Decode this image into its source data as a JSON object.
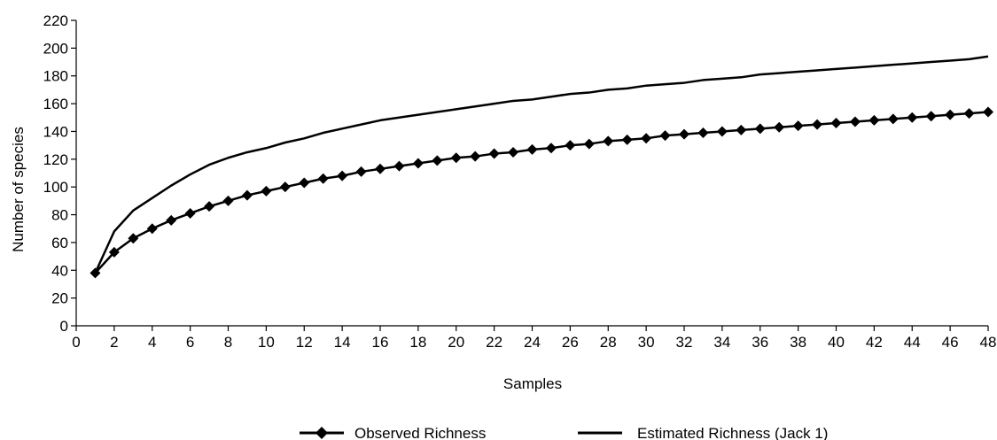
{
  "chart_data": {
    "type": "line",
    "title": "",
    "xlabel": "Samples",
    "ylabel": "Number of species",
    "xlim": [
      0,
      48
    ],
    "ylim": [
      0,
      220
    ],
    "xticks": [
      0,
      2,
      4,
      6,
      8,
      10,
      12,
      14,
      16,
      18,
      20,
      22,
      24,
      26,
      28,
      30,
      32,
      34,
      36,
      38,
      40,
      42,
      44,
      46,
      48
    ],
    "yticks": [
      0,
      20,
      40,
      60,
      80,
      100,
      120,
      140,
      160,
      180,
      200,
      220
    ],
    "grid": false,
    "legend_position": "bottom",
    "x": [
      1,
      2,
      3,
      4,
      5,
      6,
      7,
      8,
      9,
      10,
      11,
      12,
      13,
      14,
      15,
      16,
      17,
      18,
      19,
      20,
      21,
      22,
      23,
      24,
      25,
      26,
      27,
      28,
      29,
      30,
      31,
      32,
      33,
      34,
      35,
      36,
      37,
      38,
      39,
      40,
      41,
      42,
      43,
      44,
      45,
      46,
      47,
      48
    ],
    "series": [
      {
        "name": "Observed Richness",
        "marker": "diamond",
        "color": "#000000",
        "values": [
          38,
          53,
          63,
          70,
          76,
          81,
          86,
          90,
          94,
          97,
          100,
          103,
          106,
          108,
          111,
          113,
          115,
          117,
          119,
          121,
          122,
          124,
          125,
          127,
          128,
          130,
          131,
          133,
          134,
          135,
          137,
          138,
          139,
          140,
          141,
          142,
          143,
          144,
          145,
          146,
          147,
          148,
          149,
          150,
          151,
          152,
          153,
          154
        ]
      },
      {
        "name": "Estimated Richness (Jack 1)",
        "marker": "none",
        "color": "#000000",
        "values": [
          38,
          68,
          83,
          92,
          101,
          109,
          116,
          121,
          125,
          128,
          132,
          135,
          139,
          142,
          145,
          148,
          150,
          152,
          154,
          156,
          158,
          160,
          162,
          163,
          165,
          167,
          168,
          170,
          171,
          173,
          174,
          175,
          177,
          178,
          179,
          181,
          182,
          183,
          184,
          185,
          186,
          187,
          188,
          189,
          190,
          191,
          192,
          194
        ]
      }
    ]
  }
}
